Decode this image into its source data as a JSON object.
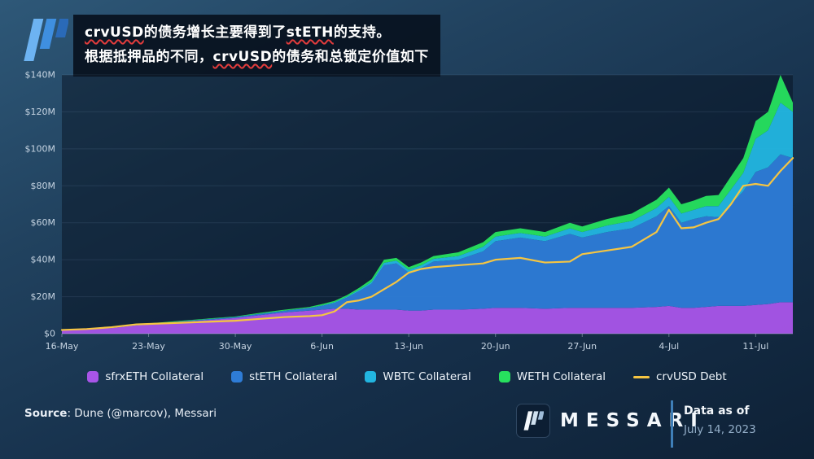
{
  "header": {
    "title_lines": [
      {
        "segments": [
          {
            "text": "crvUSD",
            "misspelled": true
          },
          {
            "text": "的债务增长主要得到了",
            "misspelled": false
          },
          {
            "text": "stETH",
            "misspelled": true
          },
          {
            "text": "的支持。",
            "misspelled": false
          }
        ]
      },
      {
        "segments": [
          {
            "text": "根据抵押品的不同，",
            "misspelled": false
          },
          {
            "text": "crvUSD",
            "misspelled": true
          },
          {
            "text": "的债务和总锁定价值如下",
            "misspelled": false
          }
        ]
      }
    ]
  },
  "chart_data": {
    "type": "area",
    "stacked": true,
    "unit": "USD millions",
    "ylim": [
      0,
      140
    ],
    "grid": "horizontal",
    "legend_position": "bottom",
    "x_tick_labels": [
      "16-May",
      "23-May",
      "30-May",
      "6-Jun",
      "13-Jun",
      "20-Jun",
      "27-Jun",
      "4-Jul",
      "11-Jul"
    ],
    "x_tick_days": [
      0,
      7,
      14,
      21,
      28,
      35,
      42,
      49,
      56
    ],
    "y_ticks": [
      0,
      20,
      40,
      60,
      80,
      100,
      120,
      140
    ],
    "y_tick_labels": [
      "$0",
      "$20M",
      "$40M",
      "$60M",
      "$80M",
      "$100M",
      "$120M",
      "$140M"
    ],
    "days": [
      0,
      2,
      4,
      6,
      8,
      10,
      12,
      14,
      16,
      18,
      20,
      21,
      22,
      23,
      24,
      25,
      26,
      27,
      28,
      29,
      30,
      32,
      34,
      35,
      37,
      39,
      41,
      42,
      44,
      46,
      48,
      49,
      50,
      51,
      52,
      53,
      54,
      55,
      56,
      57,
      58,
      59
    ],
    "series": [
      {
        "name": "sfrxETH Collateral",
        "type": "area",
        "color": "#a855e8",
        "values": [
          2,
          2.5,
          3,
          4.5,
          5.5,
          6.5,
          7.5,
          8.5,
          10,
          11.5,
          12.5,
          13,
          13.5,
          13.5,
          13,
          13,
          13,
          13,
          12.5,
          12.5,
          13,
          13,
          13.5,
          14,
          14,
          13.5,
          14,
          14,
          14,
          14,
          14.5,
          15,
          14,
          14,
          14.5,
          15,
          15,
          15,
          15.5,
          16,
          17,
          17
        ]
      },
      {
        "name": "stETH Collateral",
        "type": "area",
        "color": "#2e7cd6",
        "values": [
          0,
          0,
          0.2,
          0.3,
          0.3,
          0.4,
          0.5,
          0.5,
          0.8,
          1,
          1.5,
          2,
          3,
          6,
          10,
          14,
          24,
          25,
          20.5,
          23,
          26,
          27,
          31,
          36,
          38,
          36.5,
          40,
          38,
          41,
          43,
          49,
          54,
          46,
          48,
          49,
          48,
          55,
          62,
          72,
          74,
          80,
          78
        ]
      },
      {
        "name": "WBTC Collateral",
        "type": "area",
        "color": "#22b5e0",
        "values": [
          0,
          0,
          0,
          0,
          0,
          0,
          0,
          0,
          0,
          0,
          0,
          0.3,
          0.5,
          0.5,
          0.8,
          1,
          1.3,
          1.5,
          1.5,
          1.5,
          1.5,
          2,
          2.5,
          2.5,
          2.5,
          2.5,
          3,
          3,
          3.5,
          4,
          4.5,
          5,
          5,
          5,
          5.5,
          6,
          8,
          10,
          18,
          20,
          28,
          25
        ]
      },
      {
        "name": "WETH Collateral",
        "type": "area",
        "color": "#27e05e",
        "values": [
          0,
          0.3,
          0.3,
          0.3,
          0.3,
          0.3,
          0.3,
          0.3,
          0.5,
          0.5,
          0.5,
          0.7,
          0.7,
          0.8,
          1,
          1.5,
          1.7,
          1.5,
          1.5,
          1.5,
          1.5,
          2,
          2.5,
          2.5,
          2.5,
          2.5,
          3,
          3,
          3.5,
          4,
          4.5,
          5,
          5,
          5,
          5.5,
          6,
          7,
          8,
          9.5,
          10,
          15,
          5
        ]
      },
      {
        "name": "crvUSD Debt",
        "type": "line",
        "color": "#f5c542",
        "values": [
          2,
          2.5,
          3.5,
          5,
          5.5,
          6,
          6.5,
          7,
          8,
          9,
          9.5,
          10,
          12,
          17,
          18,
          20,
          24,
          28,
          33,
          35,
          36,
          37,
          38,
          40,
          41,
          38.5,
          39,
          43,
          45,
          47,
          55,
          67,
          57,
          57.5,
          60,
          62,
          70,
          80,
          81,
          80,
          88,
          95
        ]
      }
    ]
  },
  "footer": {
    "source_label": "Source",
    "source_rest": ": Dune (@marcov), Messari",
    "brand": "MESSARI",
    "data_as_of_label": "Data as of",
    "data_as_of_date": "July 14, 2023"
  },
  "colors": {
    "accent_divider": "#3f7fb8",
    "spellcheck_underline": "#e23c3c",
    "logo_blue": "#3f8fe0"
  }
}
